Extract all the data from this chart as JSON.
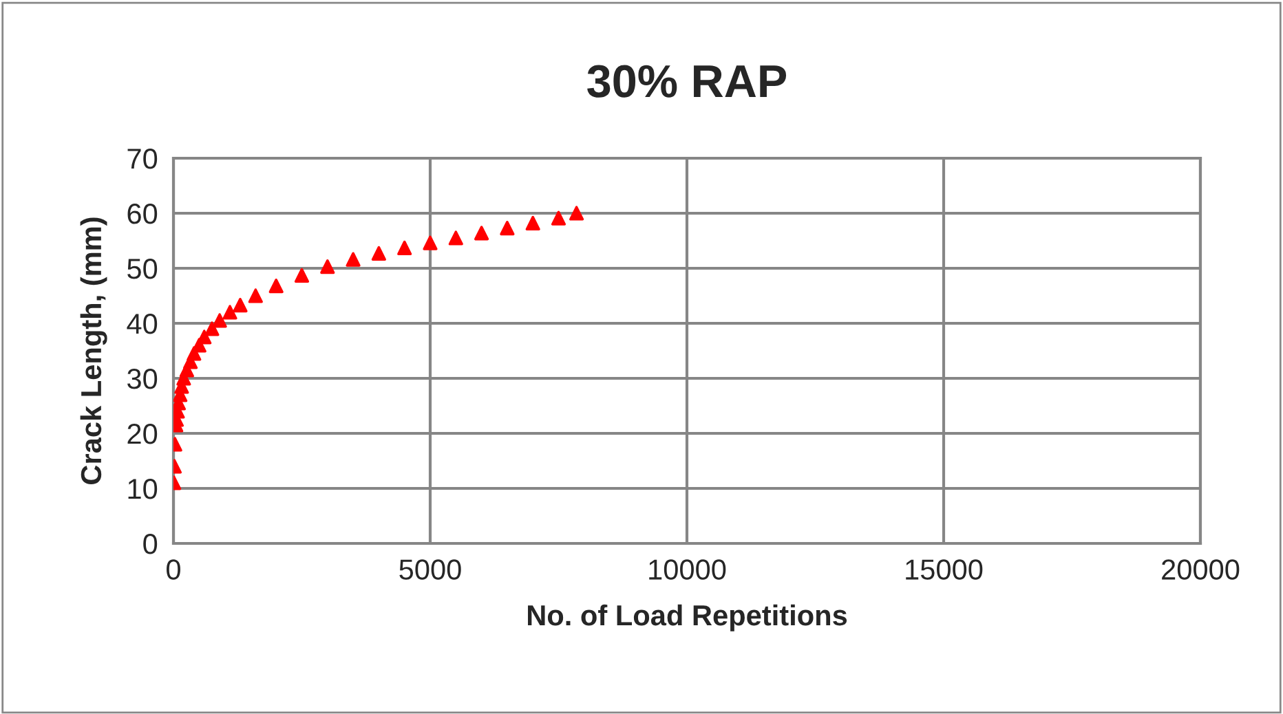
{
  "chart_data": {
    "type": "scatter",
    "title": "30% RAP",
    "xlabel": "No. of Load Repetitions",
    "ylabel": "Crack Length, (mm)",
    "x": [
      10,
      20,
      30,
      50,
      60,
      80,
      100,
      130,
      160,
      200,
      260,
      330,
      400,
      500,
      600,
      750,
      900,
      1100,
      1300,
      1600,
      2000,
      2500,
      3000,
      3500,
      4000,
      4500,
      5000,
      5500,
      6000,
      6500,
      7000,
      7500,
      7850
    ],
    "series": [
      {
        "color": "#ff0000",
        "values": [
          11,
          14,
          18,
          21.5,
          22.5,
          24,
          25.5,
          27,
          28.5,
          30,
          31.5,
          33,
          34.5,
          36,
          37.5,
          39,
          40.5,
          42,
          43.3,
          45,
          46.8,
          48.7,
          50.3,
          51.6,
          52.7,
          53.7,
          54.6,
          55.5,
          56.4,
          57.3,
          58.2,
          59.1,
          60
        ]
      }
    ],
    "xlim": [
      0,
      20000
    ],
    "xticks": [
      0,
      5000,
      10000,
      15000,
      20000
    ],
    "ylim": [
      0,
      70
    ],
    "yticks": [
      0,
      10,
      20,
      30,
      40,
      50,
      60,
      70
    ],
    "grid": true,
    "marker": "triangle",
    "legend": false
  }
}
